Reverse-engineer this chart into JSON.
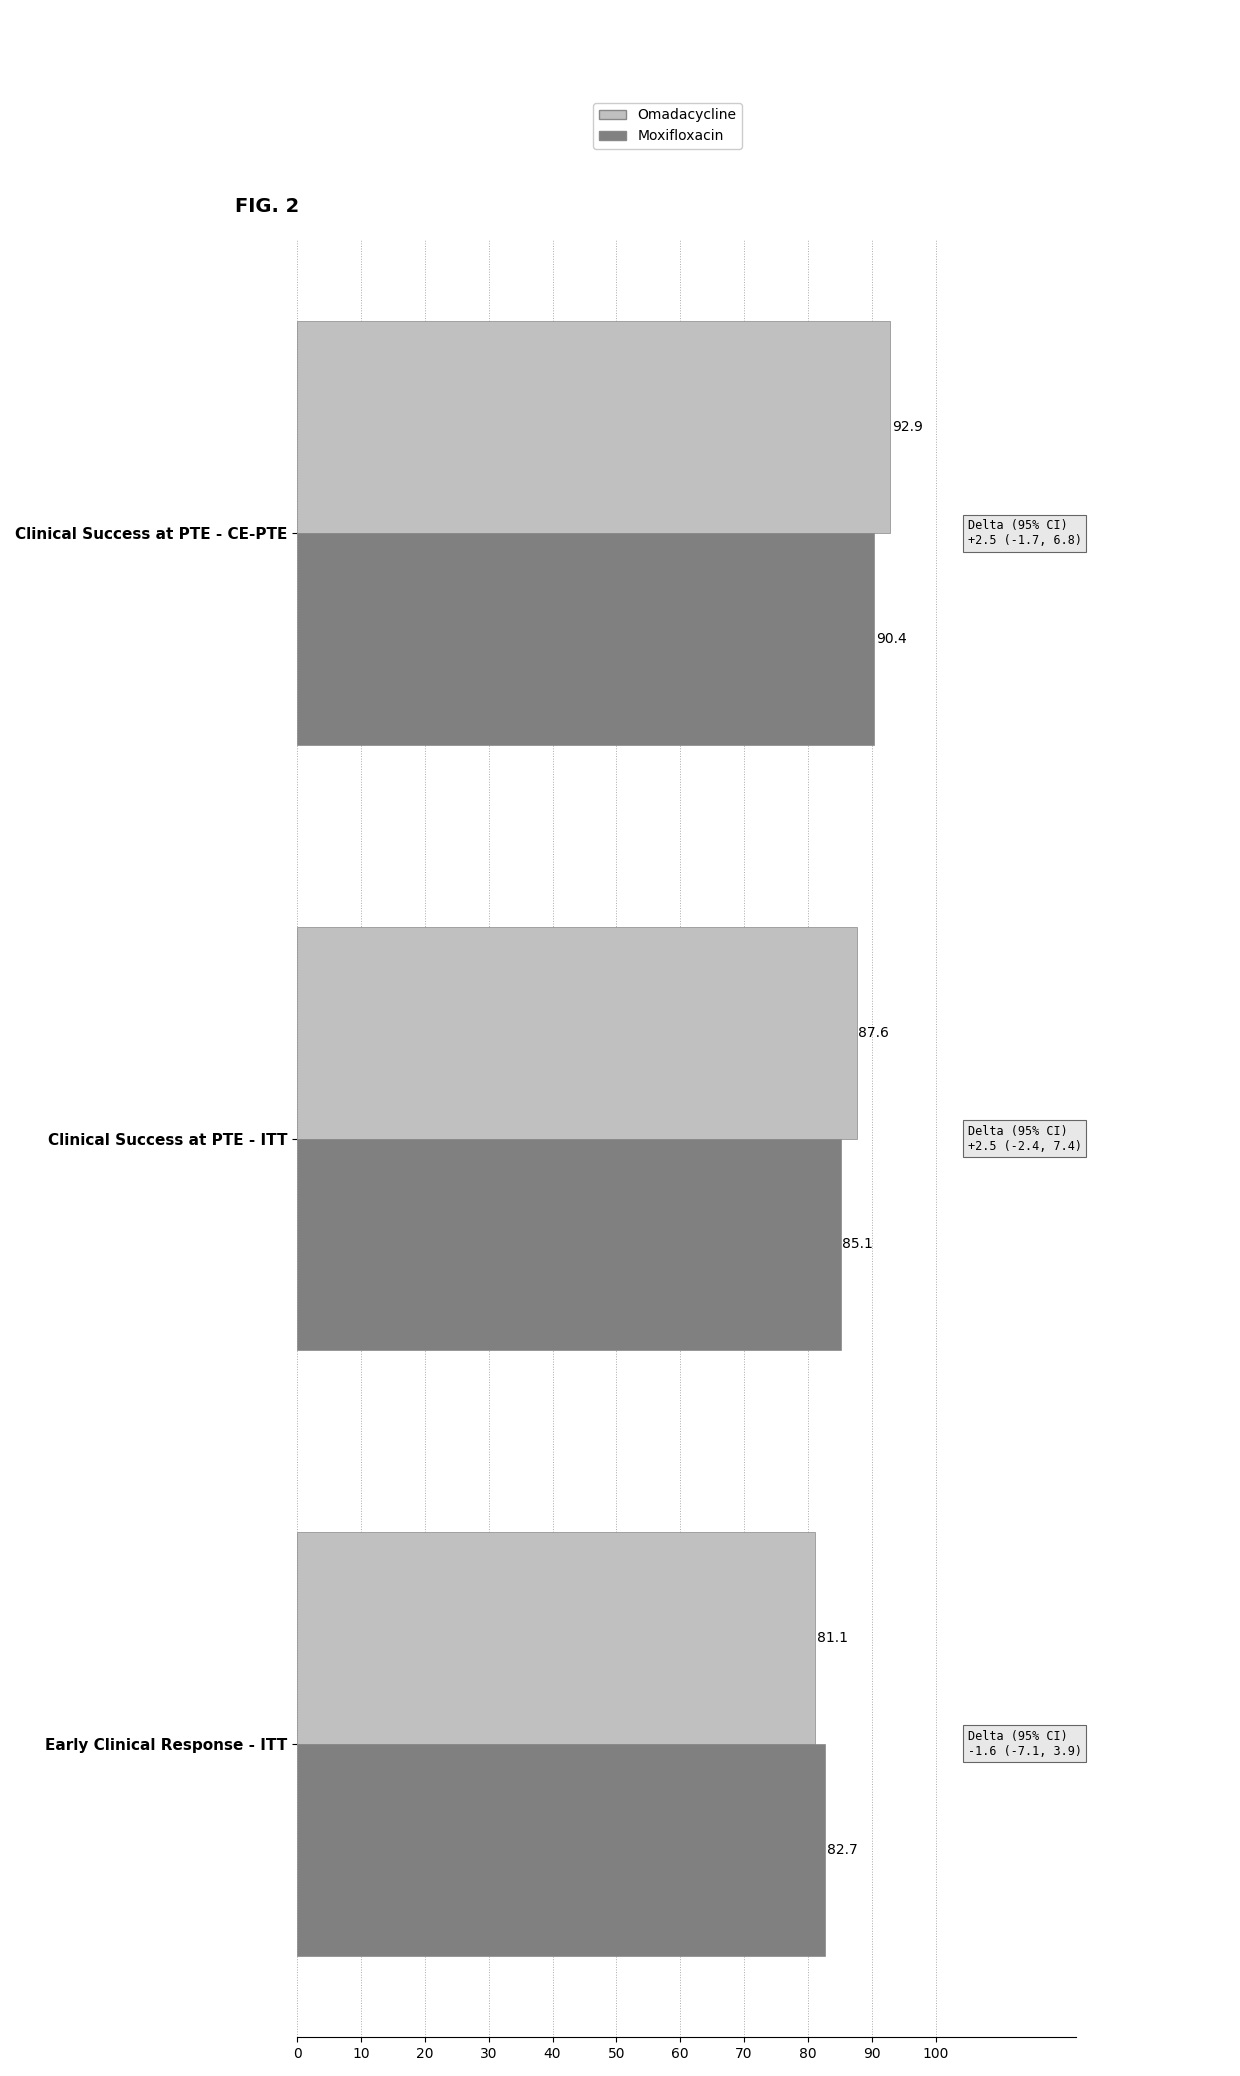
{
  "title": "FIG. 2",
  "groups": [
    "Early Clinical Response - ITT",
    "Clinical Success at PTE - ITT",
    "Clinical Success at PTE - CE-PTE"
  ],
  "omadacycline_values": [
    81.1,
    87.6,
    92.9
  ],
  "moxifloxacin_values": [
    82.7,
    85.1,
    90.4
  ],
  "omadacycline_color": "#c0c0c0",
  "moxifloxacin_color": "#808080",
  "delta_labels": [
    "Delta (95% CI)\n-1.6 (-7.1, 3.9)",
    "Delta (95% CI)\n+2.5 (-2.4, 7.4)",
    "Delta (95% CI)\n+2.5 (-1.7, 6.8)"
  ],
  "xlim": [
    0,
    100
  ],
  "xticks": [
    0,
    10,
    20,
    30,
    40,
    50,
    60,
    70,
    80,
    90,
    100
  ],
  "legend_omadacycline": "Omadacycline",
  "legend_moxifloxacin": "Moxifloxacin",
  "background_color": "#ffffff",
  "bar_height": 0.35
}
